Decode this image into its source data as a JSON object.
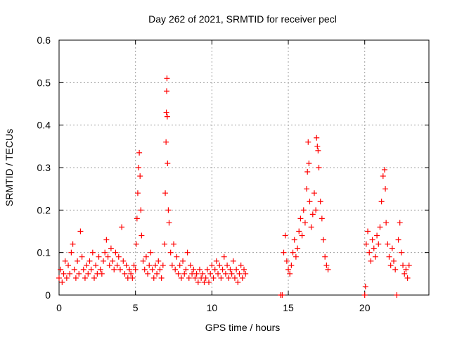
{
  "chart_data": {
    "type": "scatter",
    "title": "Day 262 of 2021, SRMTID for receiver pecl",
    "xlabel": "GPS time / hours",
    "ylabel": "SRMTID / TECUs",
    "xlim": [
      0,
      24.2
    ],
    "ylim": [
      0,
      0.6
    ],
    "xticks": [
      0,
      5,
      10,
      15,
      20
    ],
    "xtick_labels": [
      "0",
      "5",
      "10",
      "15",
      "20"
    ],
    "yticks": [
      0,
      0.1,
      0.2,
      0.3,
      0.4,
      0.5,
      0.6
    ],
    "ytick_labels": [
      "0",
      "0.1",
      "0.2",
      "0.3",
      "0.4",
      "0.5",
      "0.6"
    ],
    "grid": true,
    "marker": "+",
    "series": [
      {
        "name": "SRMTID",
        "color": "#ff0000",
        "points": [
          [
            0.0,
            0.04
          ],
          [
            0.1,
            0.06
          ],
          [
            0.2,
            0.03
          ],
          [
            0.3,
            0.05
          ],
          [
            0.4,
            0.08
          ],
          [
            0.5,
            0.04
          ],
          [
            0.6,
            0.07
          ],
          [
            0.7,
            0.05
          ],
          [
            0.8,
            0.1
          ],
          [
            0.9,
            0.12
          ],
          [
            1.0,
            0.06
          ],
          [
            1.1,
            0.04
          ],
          [
            1.2,
            0.08
          ],
          [
            1.3,
            0.05
          ],
          [
            1.4,
            0.15
          ],
          [
            1.5,
            0.09
          ],
          [
            1.6,
            0.06
          ],
          [
            1.7,
            0.04
          ],
          [
            1.8,
            0.07
          ],
          [
            1.9,
            0.05
          ],
          [
            2.0,
            0.08
          ],
          [
            2.1,
            0.06
          ],
          [
            2.2,
            0.1
          ],
          [
            2.3,
            0.04
          ],
          [
            2.4,
            0.07
          ],
          [
            2.5,
            0.05
          ],
          [
            2.6,
            0.09
          ],
          [
            2.7,
            0.06
          ],
          [
            2.8,
            0.05
          ],
          [
            2.9,
            0.08
          ],
          [
            3.0,
            0.1
          ],
          [
            3.1,
            0.13
          ],
          [
            3.2,
            0.09
          ],
          [
            3.3,
            0.07
          ],
          [
            3.4,
            0.11
          ],
          [
            3.5,
            0.08
          ],
          [
            3.6,
            0.06
          ],
          [
            3.7,
            0.1
          ],
          [
            3.8,
            0.07
          ],
          [
            3.9,
            0.09
          ],
          [
            4.0,
            0.06
          ],
          [
            4.1,
            0.16
          ],
          [
            4.2,
            0.08
          ],
          [
            4.3,
            0.05
          ],
          [
            4.4,
            0.07
          ],
          [
            4.5,
            0.04
          ],
          [
            4.6,
            0.06
          ],
          [
            4.7,
            0.05
          ],
          [
            4.8,
            0.04
          ],
          [
            4.9,
            0.07
          ],
          [
            5.0,
            0.06
          ],
          [
            5.05,
            0.12
          ],
          [
            5.1,
            0.18
          ],
          [
            5.15,
            0.24
          ],
          [
            5.2,
            0.3
          ],
          [
            5.25,
            0.335
          ],
          [
            5.3,
            0.28
          ],
          [
            5.35,
            0.2
          ],
          [
            5.4,
            0.14
          ],
          [
            5.5,
            0.08
          ],
          [
            5.6,
            0.06
          ],
          [
            5.7,
            0.09
          ],
          [
            5.8,
            0.05
          ],
          [
            5.9,
            0.07
          ],
          [
            6.0,
            0.1
          ],
          [
            6.1,
            0.06
          ],
          [
            6.2,
            0.04
          ],
          [
            6.3,
            0.07
          ],
          [
            6.4,
            0.05
          ],
          [
            6.5,
            0.08
          ],
          [
            6.6,
            0.06
          ],
          [
            6.7,
            0.04
          ],
          [
            6.8,
            0.07
          ],
          [
            6.9,
            0.12
          ],
          [
            6.95,
            0.24
          ],
          [
            7.0,
            0.36
          ],
          [
            7.02,
            0.43
          ],
          [
            7.04,
            0.48
          ],
          [
            7.06,
            0.51
          ],
          [
            7.08,
            0.42
          ],
          [
            7.1,
            0.31
          ],
          [
            7.15,
            0.2
          ],
          [
            7.2,
            0.17
          ],
          [
            7.3,
            0.1
          ],
          [
            7.4,
            0.07
          ],
          [
            7.5,
            0.12
          ],
          [
            7.6,
            0.06
          ],
          [
            7.7,
            0.09
          ],
          [
            7.8,
            0.05
          ],
          [
            7.9,
            0.07
          ],
          [
            8.0,
            0.04
          ],
          [
            8.1,
            0.08
          ],
          [
            8.2,
            0.05
          ],
          [
            8.3,
            0.06
          ],
          [
            8.4,
            0.1
          ],
          [
            8.5,
            0.04
          ],
          [
            8.6,
            0.07
          ],
          [
            8.7,
            0.05
          ],
          [
            8.8,
            0.06
          ],
          [
            8.9,
            0.04
          ],
          [
            9.0,
            0.05
          ],
          [
            9.1,
            0.03
          ],
          [
            9.2,
            0.06
          ],
          [
            9.3,
            0.04
          ],
          [
            9.4,
            0.05
          ],
          [
            9.5,
            0.03
          ],
          [
            9.6,
            0.04
          ],
          [
            9.7,
            0.06
          ],
          [
            9.8,
            0.03
          ],
          [
            9.9,
            0.05
          ],
          [
            10.0,
            0.07
          ],
          [
            10.1,
            0.04
          ],
          [
            10.2,
            0.06
          ],
          [
            10.3,
            0.08
          ],
          [
            10.4,
            0.05
          ],
          [
            10.5,
            0.07
          ],
          [
            10.6,
            0.04
          ],
          [
            10.7,
            0.06
          ],
          [
            10.8,
            0.09
          ],
          [
            10.9,
            0.05
          ],
          [
            11.0,
            0.07
          ],
          [
            11.1,
            0.04
          ],
          [
            11.2,
            0.06
          ],
          [
            11.3,
            0.05
          ],
          [
            11.4,
            0.08
          ],
          [
            11.5,
            0.04
          ],
          [
            11.6,
            0.06
          ],
          [
            11.7,
            0.03
          ],
          [
            11.8,
            0.05
          ],
          [
            11.9,
            0.07
          ],
          [
            12.0,
            0.04
          ],
          [
            12.1,
            0.06
          ],
          [
            12.2,
            0.05
          ],
          [
            14.5,
            0.0
          ],
          [
            14.6,
            0.0
          ],
          [
            14.7,
            0.1
          ],
          [
            14.8,
            0.14
          ],
          [
            14.9,
            0.08
          ],
          [
            15.0,
            0.06
          ],
          [
            15.1,
            0.05
          ],
          [
            15.2,
            0.07
          ],
          [
            15.3,
            0.1
          ],
          [
            15.4,
            0.13
          ],
          [
            15.5,
            0.09
          ],
          [
            15.6,
            0.11
          ],
          [
            15.7,
            0.15
          ],
          [
            15.8,
            0.18
          ],
          [
            15.9,
            0.14
          ],
          [
            16.0,
            0.2
          ],
          [
            16.1,
            0.17
          ],
          [
            16.2,
            0.25
          ],
          [
            16.3,
            0.36
          ],
          [
            16.35,
            0.31
          ],
          [
            16.4,
            0.22
          ],
          [
            16.5,
            0.16
          ],
          [
            16.6,
            0.19
          ],
          [
            16.7,
            0.24
          ],
          [
            16.8,
            0.2
          ],
          [
            16.9,
            0.35
          ],
          [
            17.0,
            0.3
          ],
          [
            17.1,
            0.22
          ],
          [
            17.2,
            0.18
          ],
          [
            17.3,
            0.13
          ],
          [
            17.4,
            0.09
          ],
          [
            17.5,
            0.07
          ],
          [
            17.6,
            0.06
          ],
          [
            16.85,
            0.37
          ],
          [
            16.95,
            0.34
          ],
          [
            16.25,
            0.29
          ],
          [
            20.0,
            0.0
          ],
          [
            20.05,
            0.02
          ],
          [
            20.1,
            0.12
          ],
          [
            20.2,
            0.15
          ],
          [
            20.3,
            0.1
          ],
          [
            20.4,
            0.08
          ],
          [
            20.5,
            0.13
          ],
          [
            20.6,
            0.11
          ],
          [
            20.7,
            0.09
          ],
          [
            20.8,
            0.14
          ],
          [
            20.9,
            0.12
          ],
          [
            21.0,
            0.16
          ],
          [
            21.1,
            0.22
          ],
          [
            21.2,
            0.28
          ],
          [
            21.3,
            0.295
          ],
          [
            21.35,
            0.25
          ],
          [
            21.4,
            0.17
          ],
          [
            21.5,
            0.12
          ],
          [
            21.6,
            0.09
          ],
          [
            21.7,
            0.07
          ],
          [
            21.8,
            0.11
          ],
          [
            21.9,
            0.08
          ],
          [
            22.0,
            0.06
          ],
          [
            22.1,
            0.0
          ],
          [
            22.2,
            0.13
          ],
          [
            22.3,
            0.17
          ],
          [
            22.4,
            0.1
          ],
          [
            22.5,
            0.07
          ],
          [
            22.6,
            0.05
          ],
          [
            22.7,
            0.06
          ],
          [
            22.8,
            0.04
          ],
          [
            22.9,
            0.07
          ]
        ]
      }
    ]
  }
}
